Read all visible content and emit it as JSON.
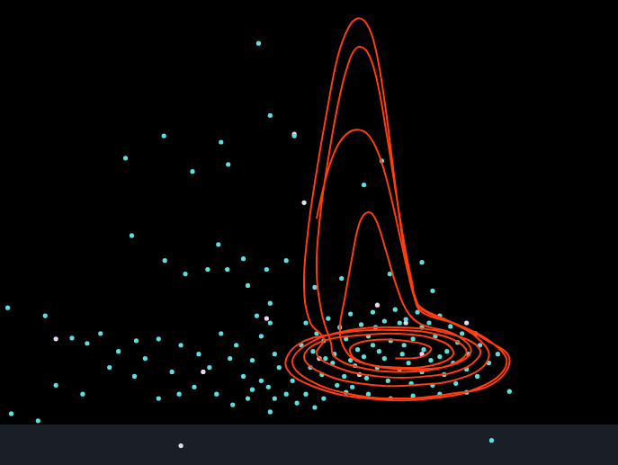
{
  "chart_data": {
    "type": "scatter",
    "xlim": [
      0,
      687
    ],
    "ylim": [
      0,
      517
    ],
    "grid": false,
    "tick_labels": false,
    "series": [
      {
        "type": "line",
        "color": "#ff3d12",
        "marker": "none",
        "x": [
          352,
          358,
          366,
          376,
          388,
          398,
          408,
          418,
          428,
          438,
          448,
          456,
          462,
          470,
          505,
          540,
          568,
          550,
          500,
          445,
          390,
          345,
          325,
          340,
          380,
          440,
          500,
          535,
          520,
          475,
          420,
          375,
          352,
          360,
          345,
          338,
          342,
          352,
          364,
          376,
          388,
          398,
          408,
          418,
          428,
          437,
          446,
          454,
          461,
          470,
          510,
          548,
          565,
          540,
          480,
          410,
          350,
          318,
          330,
          375,
          440,
          495,
          520,
          500,
          450,
          400,
          372,
          368,
          358,
          352,
          356,
          366,
          378,
          390,
          399,
          409,
          419,
          430,
          441,
          451,
          459,
          466,
          500,
          530,
          545,
          520,
          460,
          400,
          355,
          338,
          355,
          400,
          455,
          495,
          505,
          480,
          440,
          400,
          385,
          378,
          384,
          392,
          398,
          404,
          412,
          420,
          430,
          442,
          454,
          470,
          505,
          525,
          510,
          470,
          425,
          395,
          390,
          410,
          450,
          480,
          470,
          440
        ],
        "values": [
          274,
          302,
          332,
          357,
          371,
          374,
          370,
          355,
          327,
          287,
          242,
          207,
          187,
          172,
          157,
          139,
          117,
          89,
          77,
          72,
          77,
          92,
          112,
          132,
          147,
          152,
          145,
          127,
          107,
          97,
          97,
          107,
          122,
          139,
          157,
          197,
          257,
          327,
          397,
          457,
          489,
          499,
          493,
          465,
          407,
          337,
          267,
          217,
          187,
          169,
          155,
          135,
          112,
          87,
          72,
          72,
          85,
          107,
          132,
          145,
          149,
          142,
          125,
          109,
          102,
          107,
          119,
          135,
          167,
          217,
          277,
          347,
          412,
          455,
          467,
          461,
          432,
          372,
          302,
          242,
          202,
          177,
          159,
          142,
          119,
          97,
          87,
          89,
          102,
          119,
          135,
          143,
          144,
          135,
          121,
          109,
          107,
          113,
          125,
          147,
          187,
          232,
          262,
          277,
          281,
          269,
          237,
          197,
          169,
          155,
          145,
          127,
          112,
          105,
          107,
          117,
          129,
          137,
          137,
          129,
          119,
          117
        ]
      },
      {
        "color": "#5fdede",
        "marker": "circle",
        "x": [
          287,
          300,
          181,
          245,
          138,
          253,
          213,
          327,
          405,
          425,
          145,
          182,
          242,
          270,
          296,
          318,
          230,
          205,
          252,
          275,
          300,
          285,
          6,
          48,
          78,
          95,
          110,
          130,
          150,
          160,
          175,
          190,
          200,
          220,
          232,
          245,
          255,
          262,
          270,
          280,
          290,
          300,
          305,
          40,
          10,
          60,
          90,
          120,
          148,
          175,
          198,
          215,
          240,
          258,
          275,
          548,
          568,
          470,
          482,
          434,
          380,
          350,
          340,
          352,
          365,
          378,
          390,
          402,
          415,
          428,
          440,
          452,
          465,
          478,
          490,
          502,
          515,
          335,
          348,
          360,
          372,
          385,
          398,
          410,
          422,
          435,
          448,
          460,
          472,
          485,
          498,
          510,
          522,
          535,
          345,
          358,
          370,
          383,
          395,
          408,
          420,
          432,
          445,
          458,
          470,
          482,
          495,
          508,
          520,
          532,
          545,
          555,
          325,
          310,
          298,
          340,
          360,
          385,
          410,
          435,
          460,
          490,
          520,
          350,
          330,
          318,
          305,
          290,
          280,
          300,
          405,
          418,
          455,
          480,
          392,
          445,
          428,
          470,
          505,
          375,
          530,
          362,
          390,
          415,
          450,
          490
        ],
        "values": [
          471,
          390,
          367,
          360,
          342,
          335,
          327,
          367,
          312,
          339,
          255,
          227,
          245,
          229,
          217,
          227,
          217,
          212,
          217,
          199,
          179,
          165,
          174,
          165,
          140,
          134,
          145,
          125,
          137,
          117,
          139,
          102,
          132,
          122,
          107,
          145,
          117,
          132,
          97,
          115,
          142,
          157,
          122,
          47,
          55,
          87,
          77,
          107,
          97,
          72,
          77,
          85,
          77,
          65,
          72,
          25,
          80,
          225,
          193,
          212,
          207,
          197,
          157,
          145,
          162,
          152,
          167,
          155,
          169,
          159,
          172,
          161,
          169,
          157,
          165,
          153,
          145,
          132,
          125,
          137,
          122,
          139,
          127,
          142,
          125,
          137,
          122,
          139,
          127,
          142,
          125,
          135,
          122,
          132,
          107,
          99,
          112,
          97,
          109,
          95,
          107,
          92,
          105,
          89,
          102,
          87,
          99,
          89,
          105,
          97,
          112,
          122,
          92,
          107,
          85,
          77,
          72,
          79,
          77,
          72,
          75,
          77,
          79,
          62,
          67,
          77,
          72,
          92,
          82,
          57,
          119,
          152,
          112,
          115,
          85,
          157,
          117,
          152,
          112,
          87,
          145,
          117,
          115,
          132,
          132,
          119
        ]
      },
      {
        "color": "#e6d9f5",
        "marker": "circle",
        "x": [
          338,
          452,
          296,
          400,
          470,
          60,
          225,
          520,
          355,
          420,
          200,
          327
        ],
        "values": [
          292,
          157,
          162,
          99,
          122,
          139,
          102,
          157,
          117,
          177,
          19,
          369
        ]
      }
    ]
  }
}
